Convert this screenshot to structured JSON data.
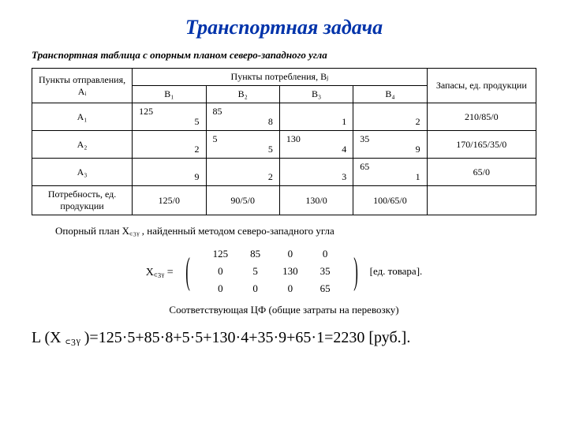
{
  "title": "Транспортная задача",
  "subtitle": "Транспортная таблица с опорным планом северо-западного угла",
  "headers": {
    "origin": "Пункты отправления, Аᵢ",
    "destinations": "Пункты потребления, Вⱼ",
    "stock": "Запасы, ед. продукции",
    "demand": "Потребность, ед. продукции",
    "b1": "В₁",
    "b2": "В₂",
    "b3": "В₃",
    "b4": "В₄"
  },
  "rows": [
    {
      "label": "А₁",
      "c": [
        {
          "a": "125",
          "t": "5"
        },
        {
          "a": "85",
          "t": "8"
        },
        {
          "a": "",
          "t": "1"
        },
        {
          "a": "",
          "t": "2"
        }
      ],
      "stock": "210/85/0"
    },
    {
      "label": "А₂",
      "c": [
        {
          "a": "",
          "t": "2"
        },
        {
          "a": "5",
          "t": "5"
        },
        {
          "a": "130",
          "t": "4"
        },
        {
          "a": "35",
          "t": "9"
        }
      ],
      "stock": "170/165/35/0"
    },
    {
      "label": "А₃",
      "c": [
        {
          "a": "",
          "t": "9"
        },
        {
          "a": "",
          "t": "2"
        },
        {
          "a": "",
          "t": "3"
        },
        {
          "a": "65",
          "t": "1"
        }
      ],
      "stock": "65/0"
    }
  ],
  "demand": [
    "125/0",
    "90/5/0",
    "130/0",
    "100/65/0"
  ],
  "plan_caption": "Опорный план X꜀₃ᵧ , найденный методом северо-западного угла",
  "matrix": {
    "label": "X꜀₃ᵧ =",
    "rows": [
      [
        "125",
        "85",
        "0",
        "0"
      ],
      [
        "0",
        "5",
        "130",
        "35"
      ],
      [
        "0",
        "0",
        "0",
        "65"
      ]
    ],
    "unit": "[ед. товара]."
  },
  "cf_caption": "Соответствующая ЦФ (общие затраты на перевозку)",
  "formula": {
    "lhs": "L (X ꜀₃ᵧ )=",
    "expr": "125·5+85·8+5·5+130·4+35·9+65·1=2230",
    "unit": "[руб.]."
  },
  "colors": {
    "title": "#0033aa",
    "text": "#000000",
    "bg": "#ffffff"
  }
}
